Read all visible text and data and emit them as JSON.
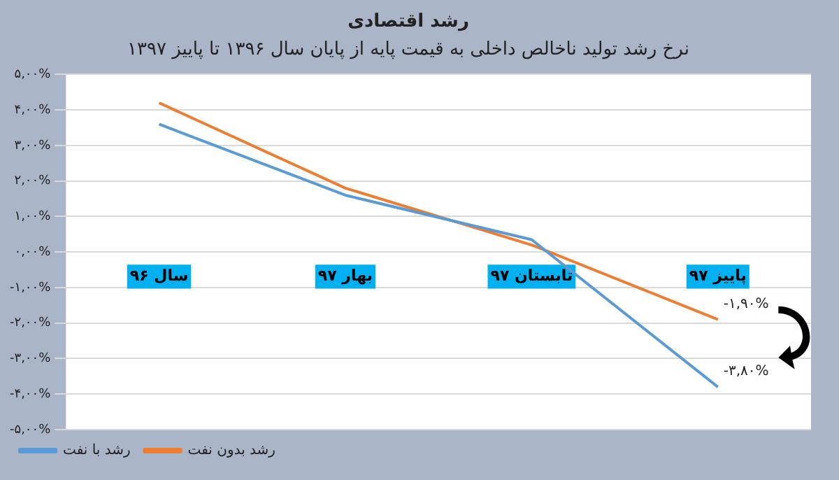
{
  "chart_data": {
    "type": "line",
    "title": "رشد اقتصادی",
    "subtitle": "نرخ رشد تولید ناخالص داخلی به قیمت پایه از پایان سال ۱۳۹۶ تا پاییز ۱۳۹۷",
    "categories": [
      "سال ۹۶",
      "بهار ۹۷",
      "تابستان ۹۷",
      "پاییز ۹۷"
    ],
    "series": [
      {
        "name": "رشد با نفت",
        "color": "#5b9bd5",
        "values": [
          3.6,
          1.6,
          0.35,
          -3.8
        ],
        "value_labels": [
          null,
          null,
          null,
          "-۳,۸۰%"
        ]
      },
      {
        "name": "رشد بدون نفت",
        "color": "#ed7d31",
        "values": [
          4.2,
          1.8,
          0.2,
          -1.9
        ],
        "value_labels": [
          null,
          null,
          null,
          "-۱,۹۰%"
        ]
      }
    ],
    "ylim": [
      -5,
      5
    ],
    "yticks": [
      {
        "value": -5,
        "label": "-۵,۰۰%"
      },
      {
        "value": -4,
        "label": "-۴,۰۰%"
      },
      {
        "value": -3,
        "label": "-۳,۰۰%"
      },
      {
        "value": -2,
        "label": "-۲,۰۰%"
      },
      {
        "value": -1,
        "label": "-۱,۰۰%"
      },
      {
        "value": 0,
        "label": "۰,۰۰%"
      },
      {
        "value": 1,
        "label": "۱,۰۰%"
      },
      {
        "value": 2,
        "label": "۲,۰۰%"
      },
      {
        "value": 3,
        "label": "۳,۰۰%"
      },
      {
        "value": 4,
        "label": "۴,۰۰%"
      },
      {
        "value": 5,
        "label": "۵,۰۰%"
      }
    ],
    "grid": "y",
    "legend": "bottom left",
    "marker": "none",
    "line_style": "solid"
  }
}
